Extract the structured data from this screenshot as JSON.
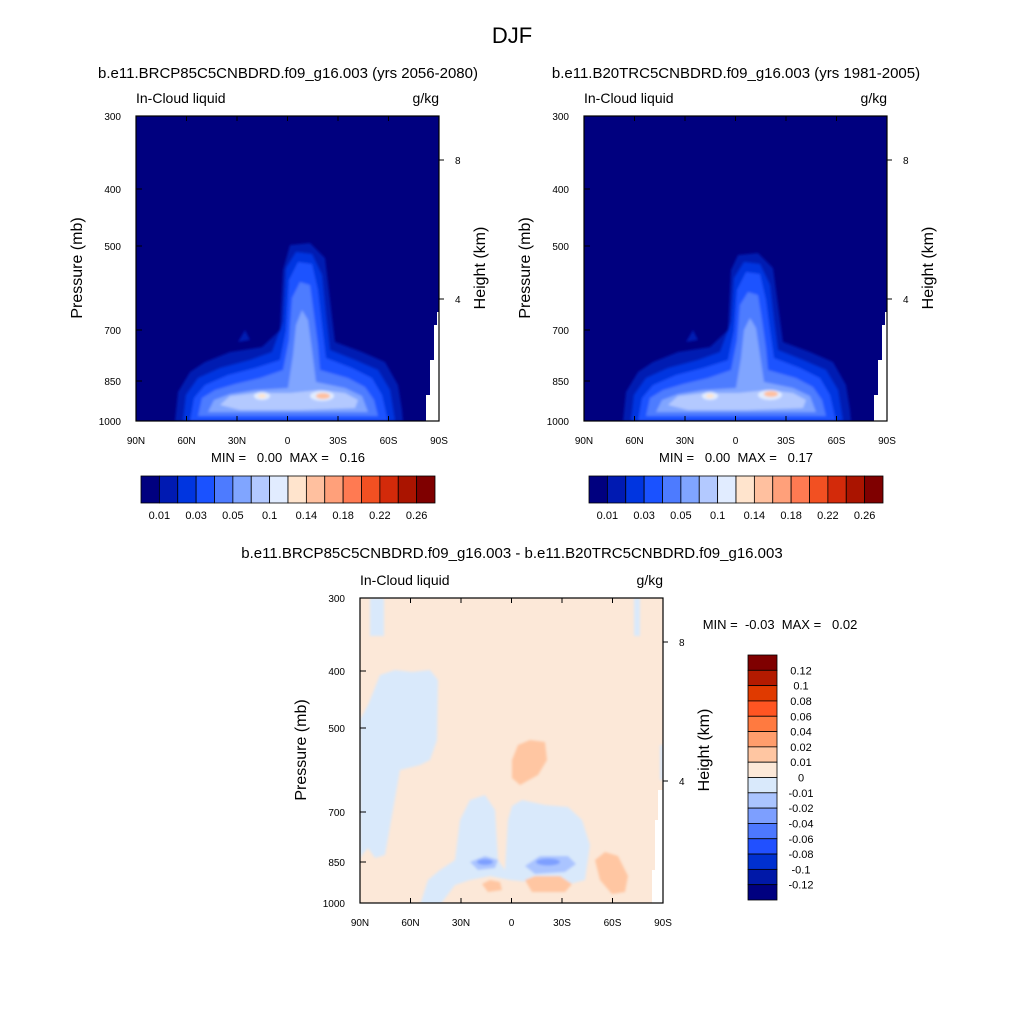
{
  "figure_title": "DJF",
  "panels": [
    {
      "title": "b.e11.BRCP85C5CNBDRD.f09_g16.003 (yrs 2056-2080)",
      "left_label": "In-Cloud liquid",
      "right_label": "g/kg",
      "ylabel": "Pressure (mb)",
      "y2label": "Height (km)",
      "stats": "MIN =   0.00  MAX =   0.16"
    },
    {
      "title": "b.e11.B20TRC5CNBDRD.f09_g16.003 (yrs 1981-2005)",
      "left_label": "In-Cloud liquid",
      "right_label": "g/kg",
      "ylabel": "Pressure (mb)",
      "y2label": "Height (km)",
      "stats": "MIN =   0.00  MAX =   0.17"
    },
    {
      "title": "b.e11.BRCP85C5CNBDRD.f09_g16.003 - b.e11.B20TRC5CNBDRD.f09_g16.003",
      "left_label": "In-Cloud liquid",
      "right_label": "g/kg",
      "ylabel": "Pressure (mb)",
      "y2label": "Height (km)",
      "stats": "MIN =  -0.03  MAX =   0.02"
    }
  ],
  "chart_data": [
    {
      "type": "heatmap",
      "title": "b.e11.BRCP85C5CNBDRD.f09_g16.003 (yrs 2056-2080)",
      "xlabel": "",
      "ylabel": "Pressure (mb)",
      "y2label": "Height (km)",
      "x_ticks": [
        "90N",
        "60N",
        "30N",
        "0",
        "30S",
        "60S",
        "90S"
      ],
      "y_ticks": [
        300,
        400,
        500,
        700,
        850,
        1000
      ],
      "y2_ticks": [
        8,
        4
      ],
      "xlim": [
        90,
        -90
      ],
      "ylim": [
        1000,
        300
      ],
      "y_scale": "log",
      "min": 0.0,
      "max": 0.16,
      "units": "g/kg",
      "colorbar_labels": [
        "0.01",
        "0.03",
        "0.05",
        "0.1",
        "0.14",
        "0.18",
        "0.22",
        "0.26"
      ]
    },
    {
      "type": "heatmap",
      "title": "b.e11.B20TRC5CNBDRD.f09_g16.003 (yrs 1981-2005)",
      "xlabel": "",
      "ylabel": "Pressure (mb)",
      "y2label": "Height (km)",
      "x_ticks": [
        "90N",
        "60N",
        "30N",
        "0",
        "30S",
        "60S",
        "90S"
      ],
      "y_ticks": [
        300,
        400,
        500,
        700,
        850,
        1000
      ],
      "y2_ticks": [
        8,
        4
      ],
      "xlim": [
        90,
        -90
      ],
      "ylim": [
        1000,
        300
      ],
      "y_scale": "log",
      "min": 0.0,
      "max": 0.17,
      "units": "g/kg",
      "colorbar_labels": [
        "0.01",
        "0.03",
        "0.05",
        "0.1",
        "0.14",
        "0.18",
        "0.22",
        "0.26"
      ]
    },
    {
      "type": "heatmap",
      "title": "b.e11.BRCP85C5CNBDRD.f09_g16.003 - b.e11.B20TRC5CNBDRD.f09_g16.003",
      "xlabel": "",
      "ylabel": "Pressure (mb)",
      "y2label": "Height (km)",
      "x_ticks": [
        "90N",
        "60N",
        "30N",
        "0",
        "30S",
        "60S",
        "90S"
      ],
      "y_ticks": [
        300,
        400,
        500,
        700,
        850,
        1000
      ],
      "y2_ticks": [
        8,
        4
      ],
      "xlim": [
        90,
        -90
      ],
      "ylim": [
        1000,
        300
      ],
      "y_scale": "log",
      "min": -0.03,
      "max": 0.02,
      "units": "g/kg",
      "colorbar_labels": [
        "0.12",
        "0.1",
        "0.08",
        "0.06",
        "0.04",
        "0.02",
        "0.01",
        "0",
        "-0.01",
        "-0.02",
        "-0.04",
        "-0.06",
        "-0.08",
        "-0.1",
        "-0.12"
      ]
    }
  ],
  "colors": {
    "seq": [
      "#00007f",
      "#001ab2",
      "#0035e0",
      "#1a52ff",
      "#4d7bff",
      "#80a5ff",
      "#b3c9ff",
      "#e1ecff",
      "#ffe4cd",
      "#ffc09f",
      "#ffa07a",
      "#ff7a52",
      "#f25022",
      "#d32a0a",
      "#aa1400",
      "#7f0000"
    ],
    "div": [
      "#7f0000",
      "#b31a00",
      "#e03a00",
      "#ff5522",
      "#ff7a40",
      "#ff9d6c",
      "#ffc6a2",
      "#fce8d8",
      "#d9e9fb",
      "#aac4ff",
      "#7d9fff",
      "#4d78ff",
      "#2150ff",
      "#0030d0",
      "#0018a8",
      "#000080"
    ]
  }
}
